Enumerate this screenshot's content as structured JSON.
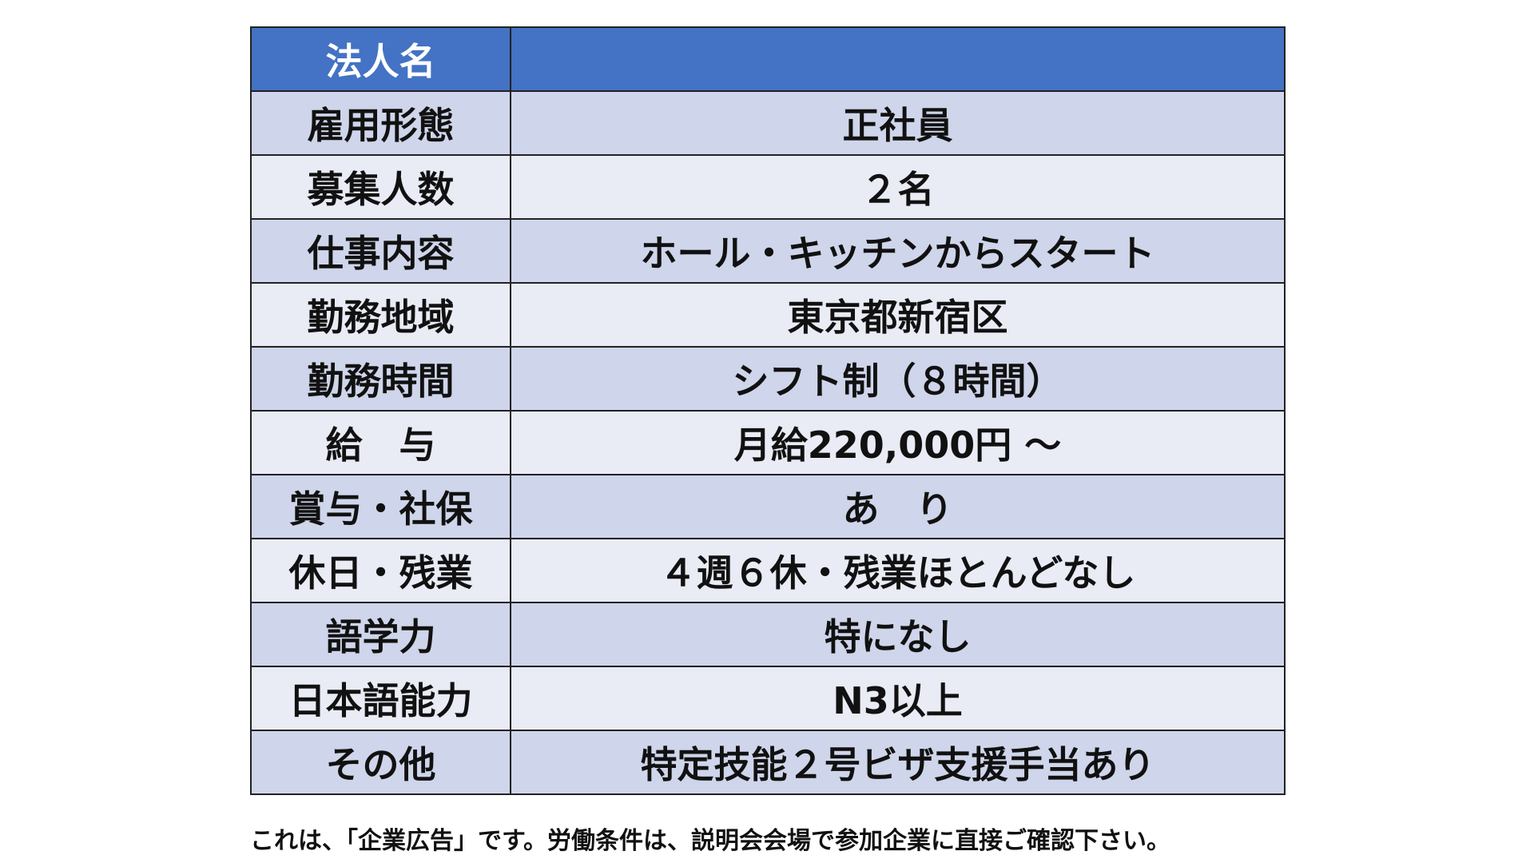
{
  "colors": {
    "header": "#4472C4",
    "row_dark": "#CFD5EA",
    "row_light": "#E9EBF5"
  },
  "header": {
    "label": "法人名",
    "value": ""
  },
  "rows": [
    {
      "label": "雇用形態",
      "value": "正社員"
    },
    {
      "label": "募集人数",
      "value": "２名"
    },
    {
      "label": "仕事内容",
      "value": "ホール・キッチンからスタート"
    },
    {
      "label": "勤務地域",
      "value": "東京都新宿区"
    },
    {
      "label": "勤務時間",
      "value": "シフト制（８時間）"
    },
    {
      "label": "給　与",
      "value": "月給220,000円 ～"
    },
    {
      "label": "賞与・社保",
      "value": "あ　り"
    },
    {
      "label": "休日・残業",
      "value": "４週６休・残業ほとんどなし"
    },
    {
      "label": "語学力",
      "value": "特になし"
    },
    {
      "label": "日本語能力",
      "value": "N3以上"
    },
    {
      "label": "その他",
      "value": "特定技能２号ビザ支援手当あり"
    }
  ],
  "footer": "これは、「企業広告」です。労働条件は、説明会会場で参加企業に直接ご確認下さい。"
}
